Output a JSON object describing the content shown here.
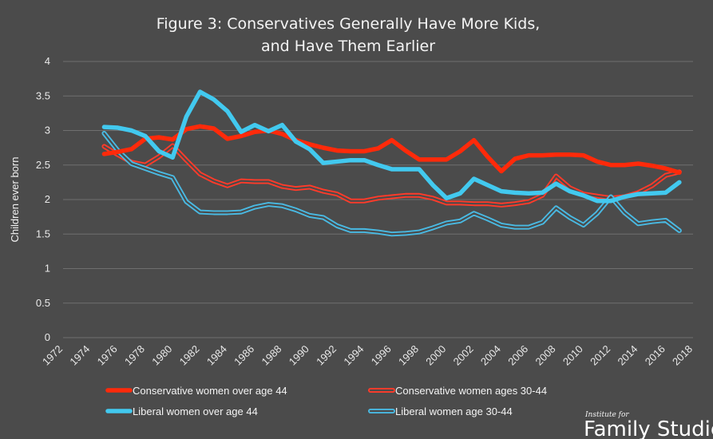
{
  "chart_data": {
    "type": "line",
    "title": [
      "Figure 3: Conservatives Generally Have More Kids,",
      "and Have Them Earlier"
    ],
    "ylabel": "Children ever born",
    "ylim": [
      0,
      4
    ],
    "y_ticks": [
      "0",
      "0.5",
      "1",
      "1.5",
      "2",
      "2.5",
      "3",
      "3.5",
      "4"
    ],
    "x_ticks": [
      "1972",
      "1974",
      "1976",
      "1978",
      "1980",
      "1982",
      "1984",
      "1986",
      "1988",
      "1990",
      "1992",
      "1994",
      "1996",
      "1998",
      "2000",
      "2002",
      "2004",
      "2006",
      "2008",
      "2010",
      "2012",
      "2014",
      "2016",
      "2018"
    ],
    "grid": true,
    "legend_position": "bottom",
    "series": [
      {
        "name": "Conservative women over age 44",
        "color": "#ff2a0a",
        "style": "solid",
        "points": [
          [
            1975,
            2.66
          ],
          [
            1976,
            2.69
          ],
          [
            1977,
            2.73
          ],
          [
            1978,
            2.88
          ],
          [
            1979,
            2.9
          ],
          [
            1980,
            2.87
          ],
          [
            1981,
            3.02
          ],
          [
            1982,
            3.06
          ],
          [
            1983,
            3.03
          ],
          [
            1984,
            2.88
          ],
          [
            1985,
            2.92
          ],
          [
            1986,
            2.98
          ],
          [
            1987,
            3.0
          ],
          [
            1988,
            2.95
          ],
          [
            1989,
            2.86
          ],
          [
            1990,
            2.8
          ],
          [
            1991,
            2.75
          ],
          [
            1992,
            2.71
          ],
          [
            1993,
            2.7
          ],
          [
            1994,
            2.7
          ],
          [
            1995,
            2.74
          ],
          [
            1996,
            2.86
          ],
          [
            1997,
            2.71
          ],
          [
            1998,
            2.58
          ],
          [
            1999,
            2.58
          ],
          [
            2000,
            2.58
          ],
          [
            2001,
            2.7
          ],
          [
            2002,
            2.86
          ],
          [
            2003,
            2.62
          ],
          [
            2004,
            2.41
          ],
          [
            2005,
            2.59
          ],
          [
            2006,
            2.64
          ],
          [
            2007,
            2.64
          ],
          [
            2008,
            2.65
          ],
          [
            2009,
            2.65
          ],
          [
            2010,
            2.64
          ],
          [
            2011,
            2.55
          ],
          [
            2012,
            2.5
          ],
          [
            2013,
            2.5
          ],
          [
            2014,
            2.52
          ],
          [
            2015,
            2.49
          ],
          [
            2016,
            2.45
          ],
          [
            2017,
            2.39
          ]
        ]
      },
      {
        "name": "Conservative women ages 30-44",
        "color": "#ff3b2a",
        "style": "double",
        "points": [
          [
            1975,
            2.77
          ],
          [
            1976,
            2.65
          ],
          [
            1977,
            2.54
          ],
          [
            1978,
            2.5
          ],
          [
            1979,
            2.62
          ],
          [
            1980,
            2.78
          ],
          [
            1981,
            2.57
          ],
          [
            1982,
            2.37
          ],
          [
            1983,
            2.27
          ],
          [
            1984,
            2.2
          ],
          [
            1985,
            2.27
          ],
          [
            1986,
            2.26
          ],
          [
            1987,
            2.26
          ],
          [
            1988,
            2.19
          ],
          [
            1989,
            2.16
          ],
          [
            1990,
            2.18
          ],
          [
            1991,
            2.12
          ],
          [
            1992,
            2.08
          ],
          [
            1993,
            1.98
          ],
          [
            1994,
            1.98
          ],
          [
            1995,
            2.02
          ],
          [
            1996,
            2.04
          ],
          [
            1997,
            2.06
          ],
          [
            1998,
            2.06
          ],
          [
            1999,
            2.02
          ],
          [
            2000,
            1.95
          ],
          [
            2001,
            1.95
          ],
          [
            2002,
            1.94
          ],
          [
            2003,
            1.94
          ],
          [
            2004,
            1.92
          ],
          [
            2005,
            1.94
          ],
          [
            2006,
            1.97
          ],
          [
            2007,
            2.06
          ],
          [
            2008,
            2.34
          ],
          [
            2009,
            2.17
          ],
          [
            2010,
            2.08
          ],
          [
            2011,
            2.05
          ],
          [
            2012,
            2.02
          ],
          [
            2013,
            2.04
          ],
          [
            2014,
            2.1
          ],
          [
            2015,
            2.2
          ],
          [
            2016,
            2.35
          ],
          [
            2017,
            2.4
          ]
        ]
      },
      {
        "name": "Liberal women over age 44",
        "color": "#42c9ef",
        "style": "solid",
        "points": [
          [
            1975,
            3.05
          ],
          [
            1976,
            3.04
          ],
          [
            1977,
            3.0
          ],
          [
            1978,
            2.92
          ],
          [
            1979,
            2.7
          ],
          [
            1980,
            2.61
          ],
          [
            1981,
            3.2
          ],
          [
            1982,
            3.56
          ],
          [
            1983,
            3.45
          ],
          [
            1984,
            3.28
          ],
          [
            1985,
            2.98
          ],
          [
            1986,
            3.08
          ],
          [
            1987,
            2.99
          ],
          [
            1988,
            3.08
          ],
          [
            1989,
            2.84
          ],
          [
            1990,
            2.73
          ],
          [
            1991,
            2.53
          ],
          [
            1992,
            2.55
          ],
          [
            1993,
            2.57
          ],
          [
            1994,
            2.57
          ],
          [
            1995,
            2.5
          ],
          [
            1996,
            2.44
          ],
          [
            1997,
            2.44
          ],
          [
            1998,
            2.44
          ],
          [
            1999,
            2.21
          ],
          [
            2000,
            2.02
          ],
          [
            2001,
            2.09
          ],
          [
            2002,
            2.3
          ],
          [
            2003,
            2.21
          ],
          [
            2004,
            2.12
          ],
          [
            2005,
            2.1
          ],
          [
            2006,
            2.09
          ],
          [
            2007,
            2.1
          ],
          [
            2008,
            2.23
          ],
          [
            2009,
            2.12
          ],
          [
            2010,
            2.06
          ],
          [
            2011,
            1.98
          ],
          [
            2012,
            1.98
          ],
          [
            2013,
            2.04
          ],
          [
            2014,
            2.08
          ],
          [
            2015,
            2.09
          ],
          [
            2016,
            2.1
          ],
          [
            2017,
            2.25
          ]
        ]
      },
      {
        "name": "Liberal women age 30-44",
        "color": "#49b9e2",
        "style": "double",
        "points": [
          [
            1975,
            2.96
          ],
          [
            1976,
            2.71
          ],
          [
            1977,
            2.52
          ],
          [
            1978,
            2.45
          ],
          [
            1979,
            2.38
          ],
          [
            1980,
            2.32
          ],
          [
            1981,
            1.97
          ],
          [
            1982,
            1.82
          ],
          [
            1983,
            1.81
          ],
          [
            1984,
            1.81
          ],
          [
            1985,
            1.82
          ],
          [
            1986,
            1.89
          ],
          [
            1987,
            1.93
          ],
          [
            1988,
            1.91
          ],
          [
            1989,
            1.85
          ],
          [
            1990,
            1.77
          ],
          [
            1991,
            1.74
          ],
          [
            1992,
            1.62
          ],
          [
            1993,
            1.55
          ],
          [
            1994,
            1.55
          ],
          [
            1995,
            1.53
          ],
          [
            1996,
            1.5
          ],
          [
            1997,
            1.51
          ],
          [
            1998,
            1.53
          ],
          [
            1999,
            1.59
          ],
          [
            2000,
            1.66
          ],
          [
            2001,
            1.69
          ],
          [
            2002,
            1.8
          ],
          [
            2003,
            1.72
          ],
          [
            2004,
            1.63
          ],
          [
            2005,
            1.6
          ],
          [
            2006,
            1.6
          ],
          [
            2007,
            1.67
          ],
          [
            2008,
            1.88
          ],
          [
            2009,
            1.74
          ],
          [
            2010,
            1.63
          ],
          [
            2011,
            1.8
          ],
          [
            2012,
            2.04
          ],
          [
            2013,
            1.81
          ],
          [
            2014,
            1.65
          ],
          [
            2015,
            1.68
          ],
          [
            2016,
            1.7
          ],
          [
            2017,
            1.55
          ]
        ]
      }
    ],
    "legend_items": [
      {
        "label": "Conservative women over age 44",
        "series_index": 0
      },
      {
        "label": "Conservative women ages 30-44",
        "series_index": 1
      },
      {
        "label": "Liberal women over age 44",
        "series_index": 2
      },
      {
        "label": "Liberal women age 30-44",
        "series_index": 3
      }
    ]
  },
  "branding": {
    "small": "Institute for",
    "main": "Family Studies"
  }
}
